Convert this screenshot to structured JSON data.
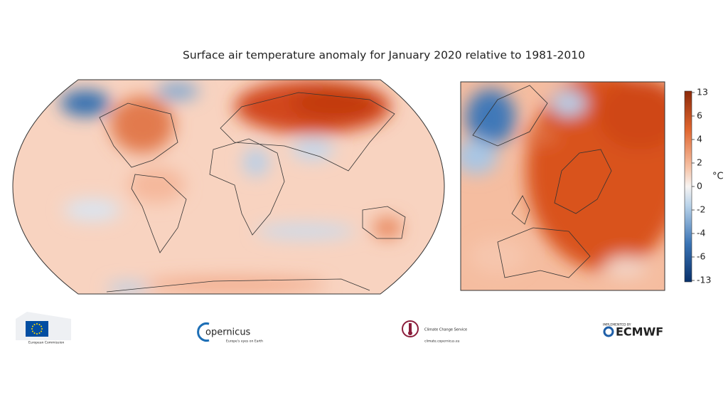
{
  "title": "Surface air temperature anomaly for January 2020 relative to 1981-2010",
  "colorbar": {
    "unit": "°C",
    "ticks": [
      13,
      6,
      4,
      2,
      0,
      -2,
      -4,
      -6,
      -13
    ]
  },
  "logos": {
    "eu": "European Commission",
    "copernicus": {
      "name": "opernicus",
      "tagline": "Europe's eyes on Earth"
    },
    "c3s": {
      "name": "Climate Change Service",
      "url": "climate.copernicus.eu"
    },
    "ecmwf": {
      "caption": "IMPLEMENTED BY",
      "name": "ECMWF"
    }
  }
}
